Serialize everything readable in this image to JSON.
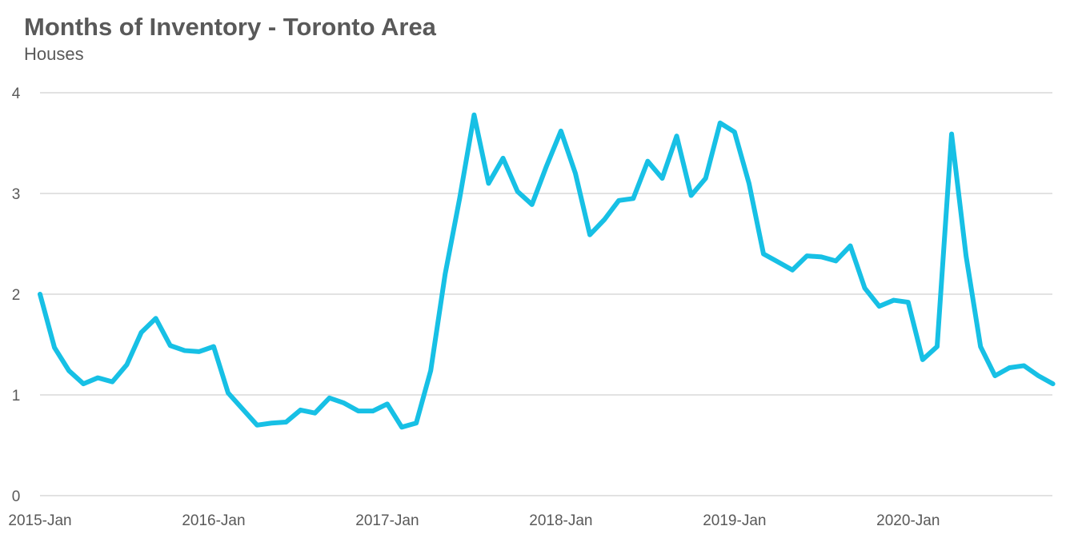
{
  "chart_data": {
    "type": "line",
    "title": "Months of Inventory - Toronto Area",
    "subtitle": "Houses",
    "xlabel": "",
    "ylabel": "",
    "ylim": [
      0,
      4
    ],
    "yticks": [
      0,
      1,
      2,
      3,
      4
    ],
    "grid": true,
    "x_tick_labels": [
      "2015-Jan",
      "2016-Jan",
      "2017-Jan",
      "2018-Jan",
      "2019-Jan",
      "2020-Jan"
    ],
    "x_tick_month_index": [
      0,
      12,
      24,
      36,
      48,
      60
    ],
    "series": [
      {
        "name": "Houses",
        "color": "#17c0e5",
        "start": "2015-Jan",
        "values": [
          2.0,
          1.47,
          1.24,
          1.11,
          1.17,
          1.13,
          1.3,
          1.62,
          1.76,
          1.49,
          1.44,
          1.43,
          1.48,
          1.02,
          0.86,
          0.7,
          0.72,
          0.73,
          0.85,
          0.82,
          0.97,
          0.92,
          0.84,
          0.84,
          0.91,
          0.68,
          0.72,
          1.24,
          2.2,
          2.95,
          3.78,
          3.1,
          3.35,
          3.02,
          2.89,
          3.27,
          3.62,
          3.2,
          2.59,
          2.74,
          2.93,
          2.95,
          3.32,
          3.15,
          3.57,
          2.98,
          3.15,
          3.7,
          3.61,
          3.1,
          2.4,
          2.32,
          2.24,
          2.38,
          2.37,
          2.33,
          2.48,
          2.06,
          1.88,
          1.94,
          1.92,
          1.35,
          1.48,
          3.59,
          2.38,
          1.48,
          1.19,
          1.27,
          1.29,
          1.19,
          1.11
        ]
      }
    ]
  }
}
